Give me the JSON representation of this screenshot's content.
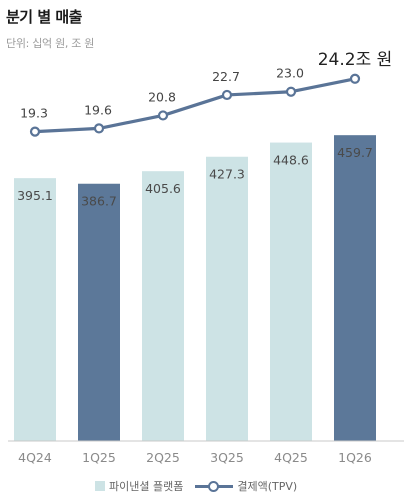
{
  "title": "분기 별 매출",
  "unit_note": "단위: 십억 원, 조 원",
  "colors": {
    "bar_light": "#cde3e5",
    "bar_dark": "#5c7899",
    "line": "#5a7497",
    "axis": "#c8c8c8"
  },
  "chart_data": {
    "type": "bar",
    "categories": [
      "4Q24",
      "1Q25",
      "2Q25",
      "3Q25",
      "4Q25",
      "1Q26"
    ],
    "series": [
      {
        "name": "파이낸셜 플랫폼",
        "kind": "bar",
        "values": [
          395.1,
          386.7,
          405.6,
          427.3,
          448.6,
          459.7
        ]
      },
      {
        "name": "결제액(TPV)",
        "kind": "line",
        "values": [
          19.3,
          19.6,
          20.8,
          22.7,
          23.0,
          24.2
        ]
      }
    ],
    "highlighted_bars": [
      1,
      5
    ],
    "last_line_label_suffix": "조 원",
    "bar_ylim": [
      0,
      475
    ],
    "line_ylim": [
      15,
      25.2
    ],
    "legend_position": "bottom-center",
    "grid": false
  },
  "legend": {
    "bar_label": "파이낸셜 플랫폼",
    "line_label": "결제액(TPV)"
  }
}
